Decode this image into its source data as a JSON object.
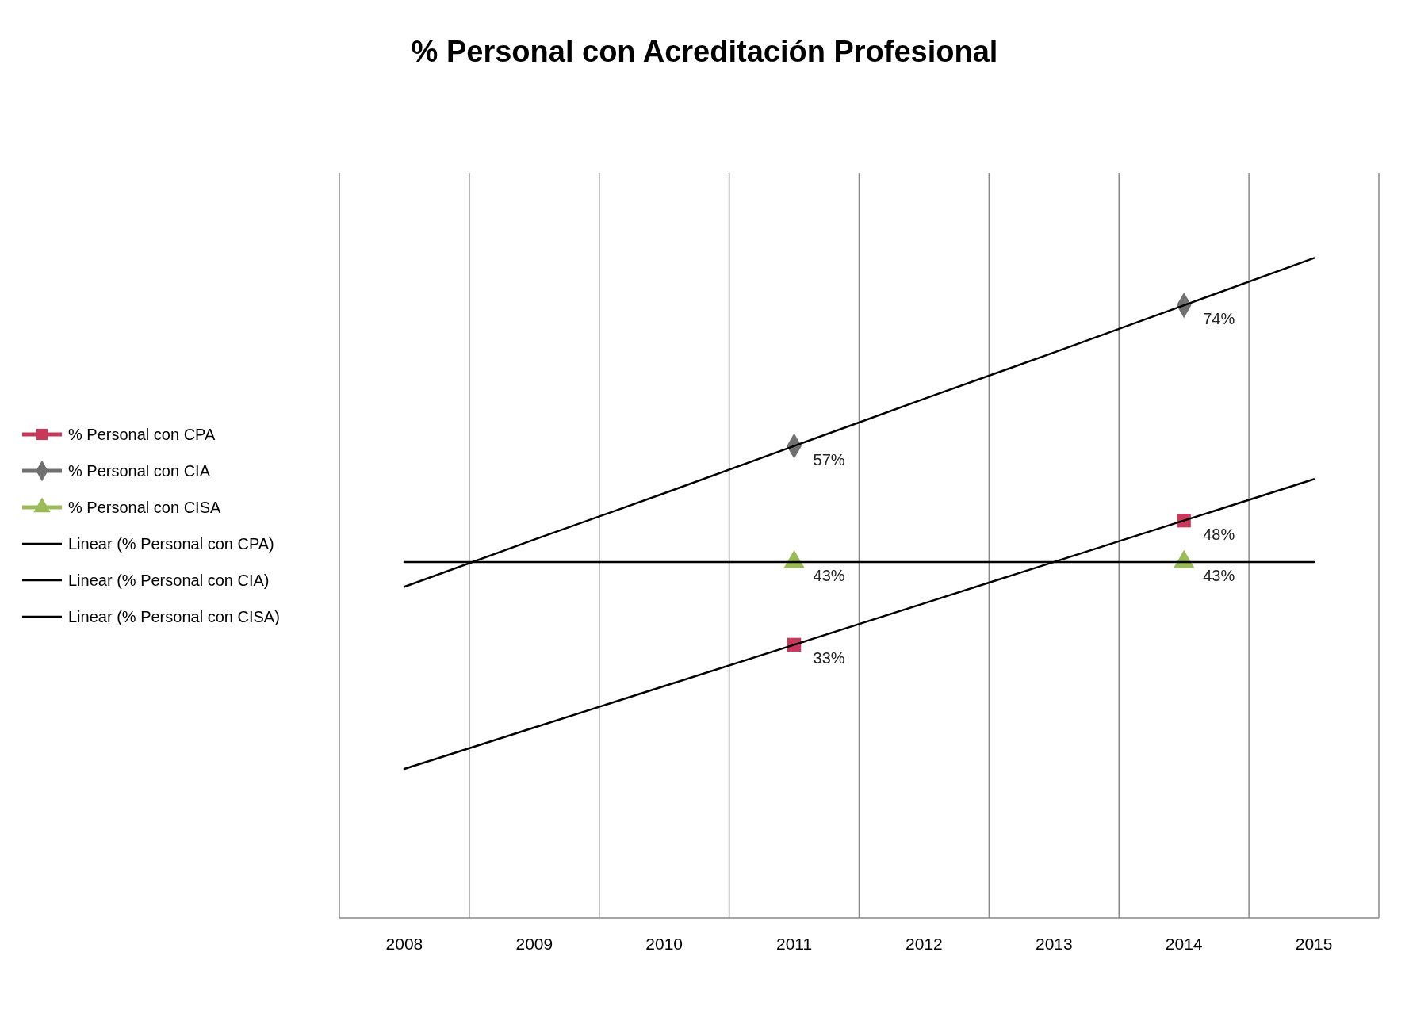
{
  "chart_data": {
    "type": "scatter",
    "title": "% Personal con Acreditación Profesional",
    "categories": [
      "2008",
      "2009",
      "2010",
      "2011",
      "2012",
      "2013",
      "2014",
      "2015"
    ],
    "ylim": [
      0,
      90
    ],
    "tick_labels": "x",
    "grid": "x",
    "legend": "left",
    "series": [
      {
        "name": "% Personal con CPA",
        "marker": "square",
        "color": "#c8385a",
        "values": [
          null,
          null,
          null,
          33,
          null,
          null,
          48,
          null
        ],
        "value_labels": [
          null,
          null,
          null,
          "33%",
          null,
          null,
          "48%",
          null
        ]
      },
      {
        "name": "% Personal con CIA",
        "marker": "diamond",
        "color": "#707070",
        "values": [
          null,
          null,
          null,
          57,
          null,
          null,
          74,
          null
        ],
        "value_labels": [
          null,
          null,
          null,
          "57%",
          null,
          null,
          "74%",
          null
        ]
      },
      {
        "name": "% Personal con CISA",
        "marker": "triangle",
        "color": "#9bbb59",
        "values": [
          null,
          null,
          null,
          43,
          null,
          null,
          43,
          null
        ],
        "value_labels": [
          null,
          null,
          null,
          "43%",
          null,
          null,
          "43%",
          null
        ]
      },
      {
        "name": "Linear (% Personal con CPA)",
        "type": "line",
        "marker": "none",
        "line_style": "solid",
        "color": "#000000",
        "values": [
          18,
          23,
          28,
          33,
          38,
          43,
          48,
          53
        ]
      },
      {
        "name": "Linear (% Personal con CIA)",
        "type": "line",
        "marker": "none",
        "line_style": "solid",
        "color": "#000000",
        "values": [
          40,
          45.7,
          51.3,
          57,
          62.7,
          68.3,
          74,
          79.7
        ]
      },
      {
        "name": "Linear (% Personal con CISA)",
        "type": "line",
        "marker": "none",
        "line_style": "solid",
        "color": "#000000",
        "values": [
          43,
          43,
          43,
          43,
          43,
          43,
          43,
          43
        ]
      }
    ]
  }
}
